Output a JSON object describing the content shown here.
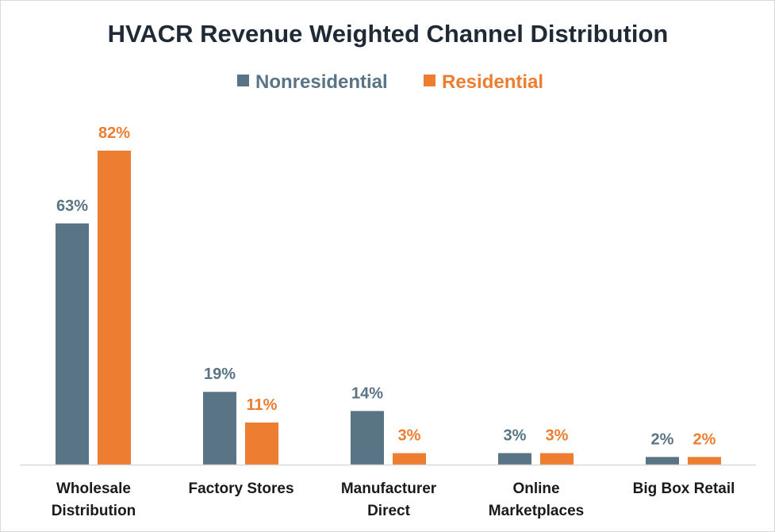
{
  "chart_data": {
    "type": "bar",
    "title": "HVACR Revenue Weighted Channel Distribution",
    "categories": [
      [
        "Wholesale",
        "Distribution"
      ],
      [
        "Factory Stores"
      ],
      [
        "Manufacturer",
        "Direct"
      ],
      [
        "Online",
        "Marketplaces"
      ],
      [
        "Big Box Retail"
      ]
    ],
    "series": [
      {
        "name": "Nonresidential",
        "color": "#587485",
        "values": [
          63,
          19,
          14,
          3,
          2
        ],
        "labels": [
          "63%",
          "19%",
          "14%",
          "3%",
          "2%"
        ]
      },
      {
        "name": "Residential",
        "color": "#ed7d31",
        "values": [
          82,
          11,
          3,
          3,
          2
        ],
        "labels": [
          "82%",
          "11%",
          "3%",
          "3%",
          "2%"
        ]
      }
    ],
    "ylim": [
      0,
      82
    ],
    "value_format": "percent",
    "grid": false,
    "y_axis_visible": false,
    "legend_position": "top-center",
    "title_color": "#1f2a36",
    "axis_line_color": "#d9d9d9"
  }
}
